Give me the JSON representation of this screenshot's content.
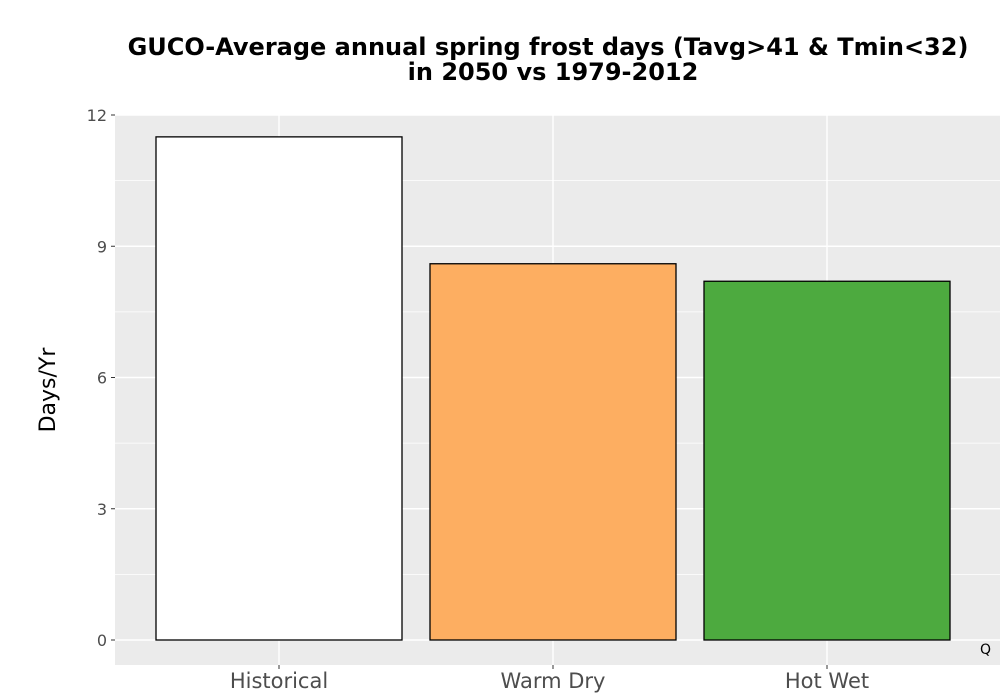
{
  "chart_data": {
    "type": "bar",
    "title_lines": [
      "GUCO-Average annual spring frost days (Tavg>41 & Tmin<32)",
      "in 2050 vs 1979-2012"
    ],
    "xlabel": "",
    "ylabel": "Days/Yr",
    "categories": [
      "Historical",
      "Warm Dry",
      "Hot Wet"
    ],
    "values": [
      11.5,
      8.6,
      8.2
    ],
    "colors": [
      "#ffffff",
      "#fdae61",
      "#4daa3f"
    ],
    "ylim": [
      0,
      12
    ],
    "yticks": [
      0,
      3,
      6,
      9,
      12
    ],
    "ytick_labels": [
      "0",
      "3",
      "6",
      "9",
      "12"
    ],
    "grid": true,
    "panel_background": "#ebebeb",
    "bar_edge_color": "#000000",
    "corner_note": "Q"
  }
}
